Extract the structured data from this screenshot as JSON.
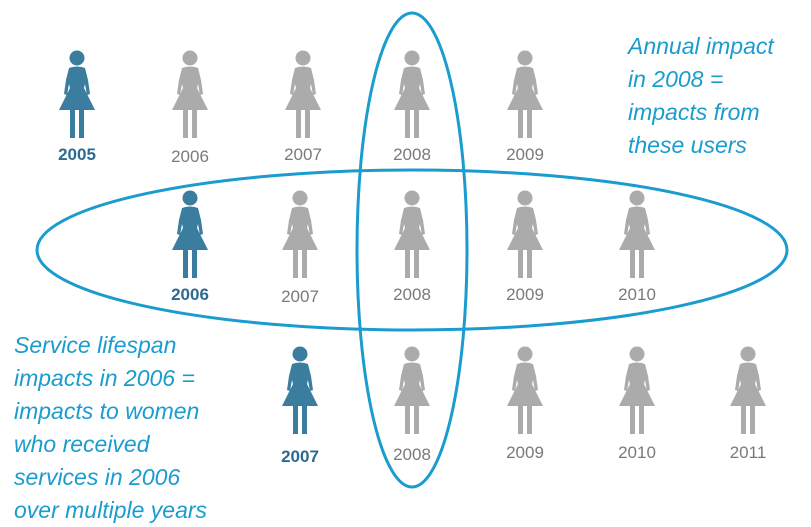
{
  "rows": [
    {
      "figures": [
        {
          "year": "2005",
          "highlight": true
        },
        {
          "year": "2006",
          "highlight": false
        },
        {
          "year": "2007",
          "highlight": false
        },
        {
          "year": "2008",
          "highlight": false
        },
        {
          "year": "2009",
          "highlight": false
        }
      ]
    },
    {
      "figures": [
        {
          "year": "2006",
          "highlight": true
        },
        {
          "year": "2007",
          "highlight": false
        },
        {
          "year": "2008",
          "highlight": false
        },
        {
          "year": "2009",
          "highlight": false
        },
        {
          "year": "2010",
          "highlight": false
        }
      ]
    },
    {
      "figures": [
        {
          "year": "2007",
          "highlight": true
        },
        {
          "year": "2008",
          "highlight": false
        },
        {
          "year": "2009",
          "highlight": false
        },
        {
          "year": "2010",
          "highlight": false
        },
        {
          "year": "2011",
          "highlight": false
        }
      ]
    }
  ],
  "annotations": {
    "annual": [
      "Annual impact",
      "in 2008 =",
      "impacts from",
      "these users"
    ],
    "lifespan": [
      "Service lifespan",
      "impacts in 2006 =",
      "impacts to women",
      "who received",
      "services in 2006",
      "over multiple years"
    ]
  }
}
